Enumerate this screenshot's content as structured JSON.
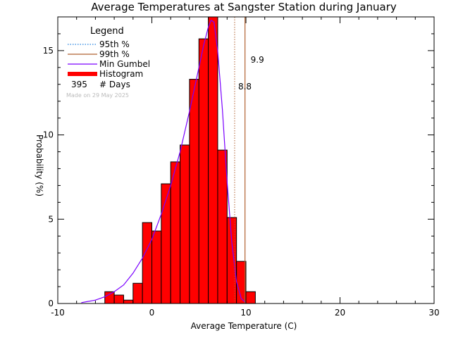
{
  "chart_data": {
    "type": "bar",
    "title": "Average Temperatures at Sangster Station during January",
    "xlabel": "Average Temperature (C)",
    "ylabel": "Probability (%)",
    "xlim": [
      -10,
      30
    ],
    "ylim": [
      0,
      17
    ],
    "xticks": [
      -10,
      0,
      10,
      20,
      30
    ],
    "yticks": [
      0,
      5,
      10,
      15
    ],
    "bin_width": 1,
    "histogram": {
      "bin_starts": [
        -5,
        -4,
        -3,
        -2,
        -1,
        0,
        1,
        2,
        3,
        4,
        5,
        6,
        7,
        8,
        9,
        10
      ],
      "values": [
        0.7,
        0.5,
        0.2,
        1.2,
        4.8,
        4.3,
        7.1,
        8.4,
        9.4,
        13.3,
        15.7,
        17.0,
        9.1,
        5.1,
        2.5,
        0.7
      ]
    },
    "gumbel_curve": {
      "x": [
        -7.5,
        -6,
        -5,
        -4,
        -3,
        -2,
        -1,
        0,
        1,
        2,
        3,
        4,
        5,
        5.5,
        6,
        6.3,
        6.6,
        7,
        7.5,
        8,
        8.5,
        9,
        9.5,
        10
      ],
      "y": [
        0.05,
        0.2,
        0.4,
        0.7,
        1.1,
        1.8,
        2.7,
        3.8,
        5.3,
        7.0,
        9.0,
        11.4,
        14.0,
        15.3,
        16.4,
        16.8,
        16.7,
        15.0,
        11.5,
        7.2,
        3.6,
        1.3,
        0.3,
        0.04
      ]
    },
    "percentile_95": 8.8,
    "percentile_99": 9.9,
    "days": 395,
    "colors": {
      "histogram": "#ff0000",
      "gumbel": "#7a00ff",
      "p95": "#2080e0",
      "p99": "#b06030"
    }
  },
  "legend": {
    "title": "Legend",
    "p95_label": "95th %",
    "p99_label": "99th %",
    "gumbel_label": "Min Gumbel",
    "hist_label": "Histogram",
    "days_value": "395",
    "days_label": "# Days",
    "made_on": "Made on 29 May 2025"
  },
  "annotations": {
    "p95_text": "8.8",
    "p99_text": "9.9"
  }
}
